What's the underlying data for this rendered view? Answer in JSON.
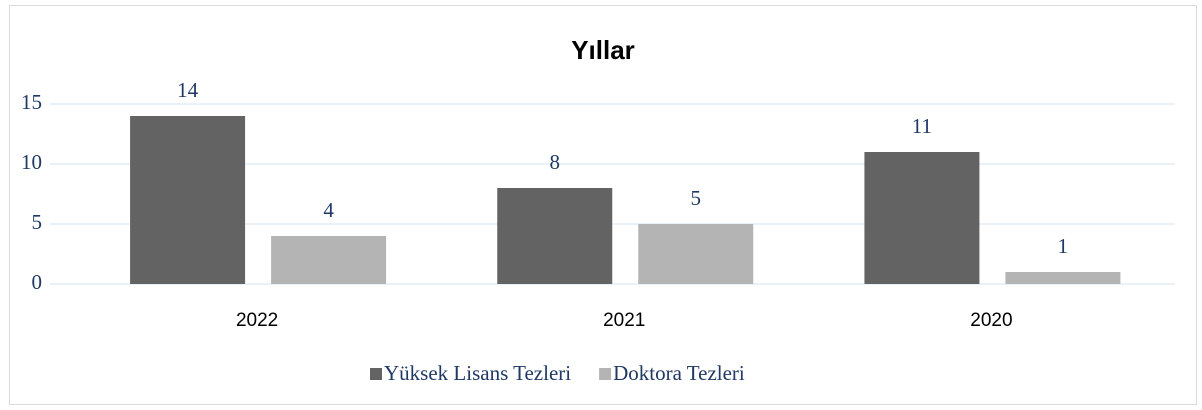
{
  "chart_data": {
    "type": "bar",
    "title": "Yıllar",
    "categories": [
      "2022",
      "2021",
      "2020"
    ],
    "series": [
      {
        "name": "Yüksek Lisans Tezleri",
        "color": "#636363",
        "values": [
          14,
          8,
          11
        ]
      },
      {
        "name": "Doktora Tezleri",
        "color": "#b4b4b4",
        "values": [
          4,
          5,
          1
        ]
      }
    ],
    "ylim": [
      0,
      15
    ],
    "yticks": [
      0,
      5,
      10,
      15
    ],
    "grid": true,
    "legend": "bottom"
  }
}
